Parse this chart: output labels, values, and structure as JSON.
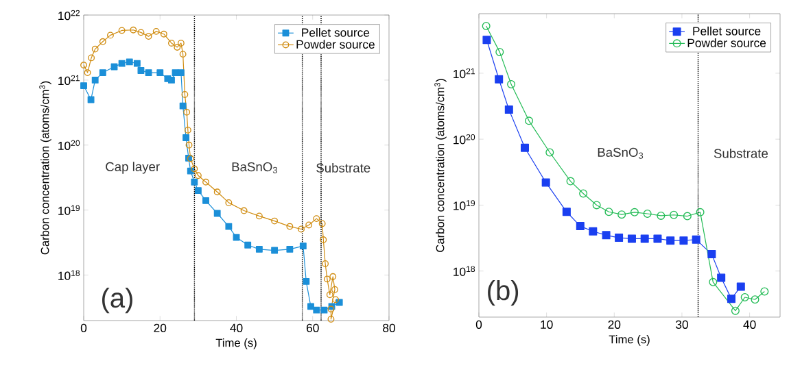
{
  "chart_data": [
    {
      "type": "line",
      "xlabel": "Time (s)",
      "ylabel": "Carbon concentration (atoms/cm$^{3}$)",
      "log": "y",
      "legend": "top right",
      "xlim": [
        0,
        80
      ],
      "xticks": [
        0,
        20,
        40,
        60,
        80
      ],
      "ylim": [
        2e+17,
        1e+22
      ],
      "yticks": [
        {
          "value": 1e+18,
          "label": "10$^{18}$"
        },
        {
          "value": 1e+19,
          "label": "10$^{19}$"
        },
        {
          "value": 1e+20,
          "label": "10$^{20}$"
        },
        {
          "value": 1e+21,
          "label": "10$^{21}$"
        },
        {
          "value": 1e+22,
          "label": "10$^{22}$"
        }
      ],
      "series": [
        {
          "name": "Pellet source",
          "color": "#1b8fd8",
          "marker": "square",
          "x": [
            0,
            1.9,
            3,
            5,
            8,
            10,
            12,
            14,
            15,
            17,
            20,
            22,
            23,
            24,
            25.5,
            26,
            26.8,
            27.5,
            28,
            29,
            30,
            32,
            35,
            38,
            40,
            43,
            46,
            50,
            54,
            57.5,
            58.3,
            59.5,
            61,
            63,
            65,
            67
          ],
          "values": [
            8.2e+20,
            5e+20,
            1e+21,
            1.3e+21,
            1.6e+21,
            1.8e+21,
            1.9e+21,
            1.8e+21,
            1.4e+21,
            1.3e+21,
            1.3e+21,
            1.05e+21,
            1e+21,
            1.3e+21,
            1.3e+21,
            4e+20,
            1.3e+20,
            6.3e+19,
            4e+19,
            2.7e+19,
            2e+19,
            1.4e+19,
            8.9e+18,
            5.6e+18,
            3.8e+18,
            2.9e+18,
            2.5e+18,
            2.4e+18,
            2.5e+18,
            2.8e+18,
            8e+17,
            3.3e+17,
            2.9e+17,
            2.9e+17,
            3.3e+17,
            3.8e+17
          ]
        },
        {
          "name": "Powder source",
          "color": "#d08c10",
          "marker": "circle",
          "x": [
            0,
            1,
            2,
            3,
            5,
            7,
            10,
            13,
            15,
            17,
            19,
            21,
            23,
            24.5,
            25.5,
            26,
            26.5,
            27,
            27.3,
            27.6,
            28,
            29,
            30,
            32,
            35,
            38,
            42,
            46,
            50,
            54,
            57,
            59,
            61,
            62.5,
            62.8,
            63.3,
            63.8,
            64.5,
            65.3,
            65.8,
            64.8,
            64.8,
            66
          ],
          "values": [
            1.7e+21,
            1.3e+21,
            2.2e+21,
            3e+21,
            3.9e+21,
            4.9e+21,
            5.8e+21,
            5.9e+21,
            5.4e+21,
            4.7e+21,
            5.6e+21,
            5.1e+21,
            3.7e+21,
            3.2e+21,
            3.7e+21,
            2.5e+21,
            6e+20,
            3.2e+20,
            1.7e+20,
            1e+20,
            6.2e+19,
            4.3e+19,
            3.4e+19,
            2.7e+19,
            1.9e+19,
            1.3e+19,
            9.8e+18,
            8.1e+18,
            6.8e+18,
            5.6e+18,
            5.1e+18,
            5.9e+18,
            7.4e+18,
            6.2e+18,
            3.5e+18,
            1.5e+18,
            8.7e+17,
            5e+17,
            9.5e+17,
            6e+17,
            3e+17,
            2.1e+17,
            4.2e+17
          ]
        }
      ],
      "ref_lines": [
        {
          "axis": "x",
          "value": 29,
          "line_style": "dotted"
        },
        {
          "axis": "x",
          "value": 57.3,
          "line_style": "dotted"
        },
        {
          "axis": "x",
          "value": 62.2,
          "line_style": "dotted"
        }
      ],
      "annotations": [
        "Cap layer",
        "BaSnO$_{3}$",
        "Substrate",
        "(a)"
      ]
    },
    {
      "type": "line",
      "xlabel": "Time (s)",
      "ylabel": "Carbon concentration (atoms/cm$^{3}$)",
      "log": "y",
      "legend": "top right",
      "xlim": [
        0,
        44.5
      ],
      "xticks": [
        0,
        10,
        20,
        30,
        40
      ],
      "ylim": [
        2e+17,
        8e+21
      ],
      "yticks": [
        {
          "value": 1e+18,
          "label": "10$^{18}$"
        },
        {
          "value": 1e+19,
          "label": "10$^{19}$"
        },
        {
          "value": 1e+20,
          "label": "10$^{20}$"
        },
        {
          "value": 1e+21,
          "label": "10$^{21}$"
        }
      ],
      "series": [
        {
          "name": "Pellet source",
          "color": "#1a3ff0",
          "marker": "square",
          "x": [
            1.16,
            2.96,
            4.44,
            6.79,
            9.9,
            12.96,
            14.98,
            16.86,
            18.81,
            20.69,
            22.6,
            24.5,
            26.4,
            28.3,
            30.25,
            32.1,
            34.4,
            35.8,
            37.3,
            38.7
          ],
          "values": [
            3.2e+21,
            8.1e+20,
            2.8e+20,
            7.4e+19,
            2.2e+19,
            7.9e+18,
            4.8e+18,
            4e+18,
            3.5e+18,
            3.2e+18,
            3.1e+18,
            3.1e+18,
            3.1e+18,
            2.9e+18,
            2.9e+18,
            3e+18,
            1.8e+18,
            7.9e+17,
            3.8e+17,
            5.8e+17
          ]
        },
        {
          "name": "Powder source",
          "color": "#22bb55",
          "marker": "circle",
          "x": [
            1.08,
            3.07,
            4.77,
            7.4,
            10.47,
            13.54,
            15.42,
            17.4,
            19.2,
            21.1,
            23.0,
            24.9,
            26.9,
            28.8,
            30.8,
            32.7,
            34.6,
            37.9,
            39.3,
            40.8,
            42.2
          ],
          "values": [
            5.2e+21,
            2.1e+21,
            6.8e+20,
            1.9e+20,
            6.3e+19,
            2.3e+19,
            1.5e+19,
            1e+19,
            7.9e+18,
            7.2e+18,
            7.8e+18,
            7.4e+18,
            6.9e+18,
            7.1e+18,
            6.8e+18,
            7.8e+18,
            6.8e+17,
            2.5e+17,
            4e+17,
            3.7e+17,
            4.9e+17
          ]
        }
      ],
      "ref_lines": [
        {
          "axis": "x",
          "value": 32.4,
          "line_style": "dotted"
        }
      ],
      "annotations": [
        "BaSnO$_{3}$",
        "Substrate",
        "(b)"
      ]
    }
  ]
}
